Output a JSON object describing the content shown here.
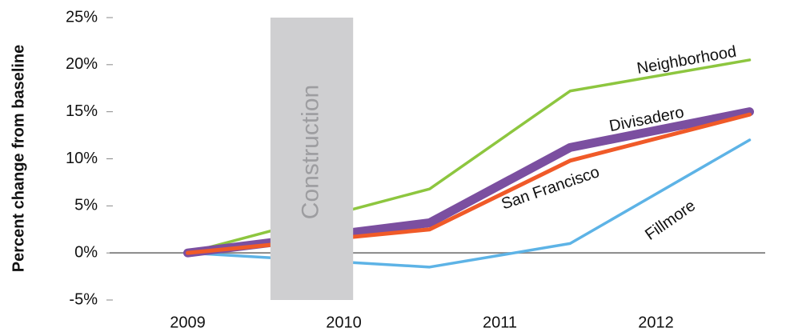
{
  "chart_data": {
    "type": "line",
    "y_label": "Percent change from baseline",
    "x": [
      2009,
      2010.55,
      2011.45,
      2012.6
    ],
    "series": [
      {
        "name": "Neighborhood",
        "color": "#8dc63f",
        "values": [
          0,
          6.8,
          17.2,
          20.5
        ]
      },
      {
        "name": "Divisadero",
        "color": "#7b4fa0",
        "values": [
          0,
          3.2,
          11.2,
          15.0
        ]
      },
      {
        "name": "San Francisco",
        "color": "#f05a28",
        "values": [
          0,
          2.5,
          9.8,
          14.7
        ]
      },
      {
        "name": "Fillmore",
        "color": "#5db3e6",
        "values": [
          0,
          -1.5,
          1.0,
          12.0
        ]
      }
    ],
    "xlim": [
      2008.5,
      2012.7
    ],
    "xticks": [
      2009,
      2010,
      2011,
      2012
    ],
    "ylim": [
      -5,
      25
    ],
    "yticks": [
      {
        "value": -5,
        "label": "-5%"
      },
      {
        "value": 0,
        "label": "0%"
      },
      {
        "value": 5,
        "label": "5%"
      },
      {
        "value": 10,
        "label": "10%"
      },
      {
        "value": 15,
        "label": "15%"
      },
      {
        "value": 20,
        "label": "20%"
      },
      {
        "value": 25,
        "label": "25%"
      }
    ],
    "shade": {
      "label": "Construction",
      "x0": 2009.53,
      "x1": 2010.06
    }
  }
}
